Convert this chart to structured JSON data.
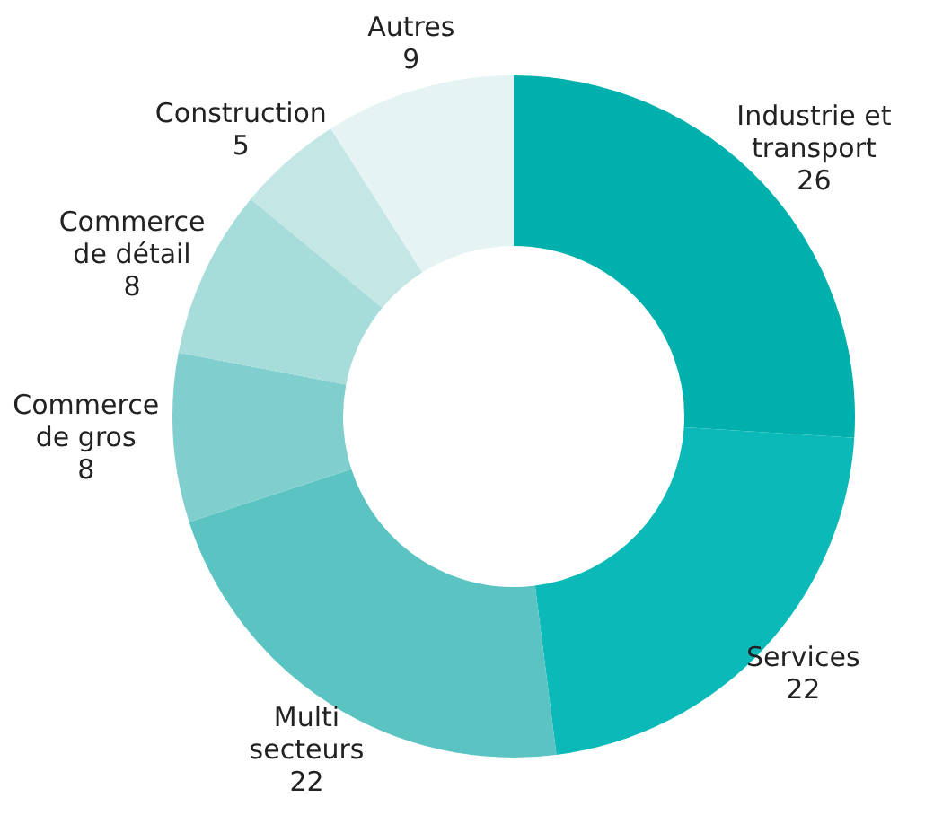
{
  "chart_data": {
    "type": "donut",
    "categories": [
      "Industrie et transport",
      "Services",
      "Multi secteurs",
      "Commerce de gros",
      "Commerce de détail",
      "Construction",
      "Autres"
    ],
    "values": [
      26,
      22,
      22,
      8,
      8,
      5,
      9
    ],
    "colors": [
      "#00b0ad",
      "#0bbab8",
      "#5bc4c2",
      "#80cfce",
      "#a6dcda",
      "#c4e6e5",
      "#e5f4f3"
    ],
    "data_labels": true,
    "legend": false
  }
}
